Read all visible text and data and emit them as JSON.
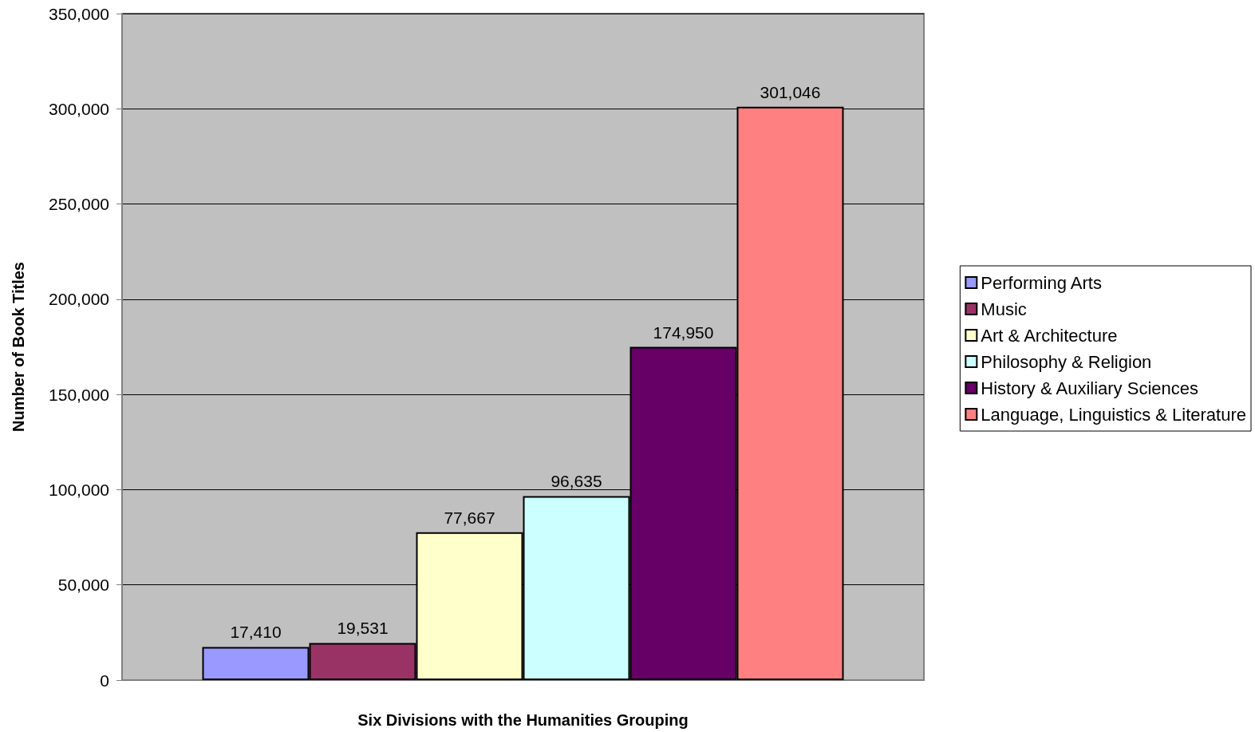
{
  "chart_data": {
    "type": "bar",
    "xlabel": "Six Divisions with the Humanities Grouping",
    "ylabel": "Number of Book Titles",
    "categories": [
      null
    ],
    "series": [
      {
        "name": "Performing Arts",
        "color": "#9999ff",
        "values": [
          17410
        ],
        "value_labels": [
          "17,410"
        ]
      },
      {
        "name": "Music",
        "color": "#993366",
        "values": [
          19531
        ],
        "value_labels": [
          "19,531"
        ]
      },
      {
        "name": "Art & Architecture",
        "color": "#ffffcc",
        "values": [
          77667
        ],
        "value_labels": [
          "77,667"
        ]
      },
      {
        "name": "Philosophy & Religion",
        "color": "#ccffff",
        "values": [
          96635
        ],
        "value_labels": [
          "96,635"
        ]
      },
      {
        "name": "History & Auxiliary Sciences",
        "color": "#660066",
        "values": [
          174950
        ],
        "value_labels": [
          "174,950"
        ]
      },
      {
        "name": "Language, Linguistics & Literature",
        "color": "#ff8080",
        "values": [
          301046
        ],
        "value_labels": [
          "301,046"
        ]
      }
    ],
    "ylim": [
      0,
      350000
    ],
    "yticks": [
      0,
      {
        "value": 50000,
        "label": "50,000"
      },
      {
        "value": 100000,
        "label": "100,000"
      },
      {
        "value": 150000,
        "label": "150,000"
      },
      {
        "value": 200000,
        "label": "200,000"
      },
      {
        "value": 250000,
        "label": "250,000"
      },
      {
        "value": 300000,
        "label": "300,000"
      },
      {
        "value": 350000,
        "label": "350,000"
      }
    ],
    "grid": "y",
    "legend": "right"
  }
}
